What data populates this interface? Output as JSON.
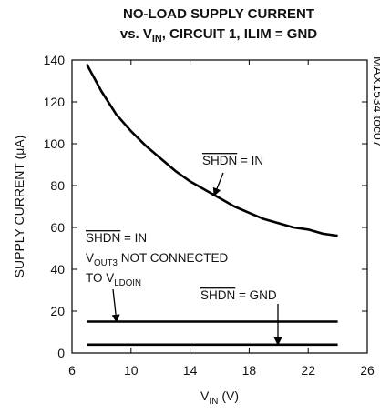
{
  "chart_data": {
    "type": "line",
    "title": "NO-LOAD SUPPLY CURRENT",
    "title_line2": [
      {
        "text": "vs. V"
      },
      {
        "text": "IN",
        "sub": true
      },
      {
        "text": ", CIRCUIT 1, ILIM = GND"
      }
    ],
    "x_label": [
      {
        "text": "V"
      },
      {
        "text": "IN",
        "sub": true
      },
      {
        "text": " (V)"
      }
    ],
    "y_label": "SUPPLY CURRENT (μA)",
    "side_note": "MAX1534 toc07",
    "xlim": [
      6,
      26
    ],
    "xticks": [
      6,
      10,
      14,
      18,
      22,
      26
    ],
    "ylim": [
      0,
      140
    ],
    "yticks": [
      0,
      20,
      40,
      60,
      80,
      100,
      120,
      140
    ],
    "series": [
      {
        "color": "#000000",
        "x": [
          7,
          8,
          9,
          10,
          11,
          12,
          13,
          14,
          15,
          16,
          17,
          18,
          19,
          20,
          21,
          22,
          23,
          24
        ],
        "values": [
          138,
          125,
          114,
          106,
          99,
          93,
          87,
          82,
          78,
          74,
          70,
          67,
          64,
          62,
          60,
          59,
          57,
          56
        ]
      },
      {
        "color": "#000000",
        "x": [
          7,
          24
        ],
        "values": [
          15,
          15
        ]
      },
      {
        "color": "#000000",
        "x": [
          7,
          24
        ],
        "values": [
          4,
          4
        ]
      }
    ],
    "annotations": [
      {
        "lines": [
          [
            {
              "text": "SHDN",
              "overline": true
            },
            {
              "text": " = IN"
            }
          ]
        ]
      },
      {
        "lines": [
          [
            {
              "text": "SHDN",
              "overline": true
            },
            {
              "text": " = IN"
            }
          ],
          [
            {
              "text": "V"
            },
            {
              "text": "OUT3",
              "sub": true
            },
            {
              "text": " NOT CONNECTED"
            }
          ],
          [
            {
              "text": "TO V"
            },
            {
              "text": "LDOIN",
              "sub": true
            }
          ]
        ]
      },
      {
        "lines": [
          [
            {
              "text": "SHDN",
              "overline": true
            },
            {
              "text": " = GND"
            }
          ]
        ]
      }
    ]
  }
}
